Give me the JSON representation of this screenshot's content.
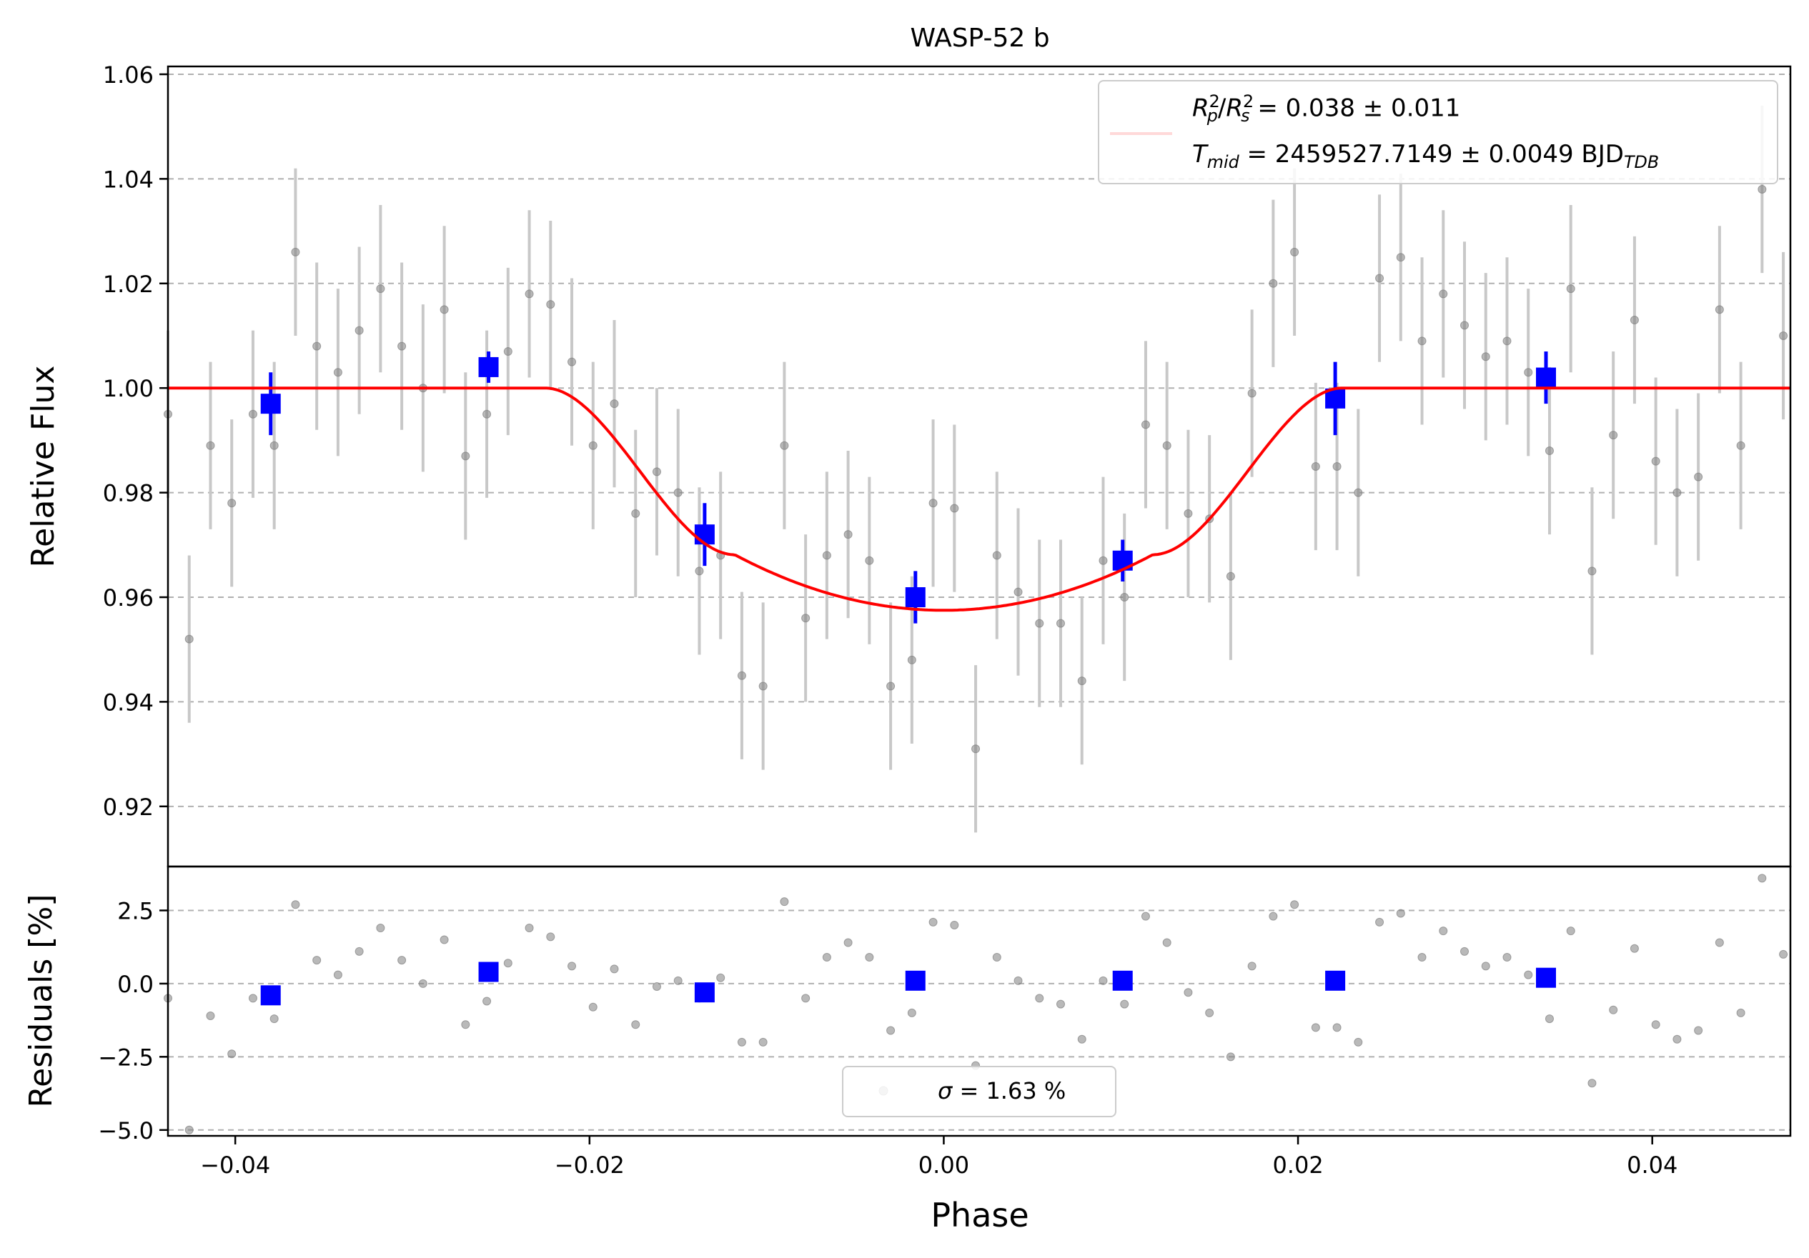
{
  "chart_data": [
    {
      "type": "scatter",
      "panel": "main",
      "title": "WASP-52 b",
      "xlabel": "",
      "ylabel": "Relative Flux",
      "xlim": [
        -0.0438,
        0.0478
      ],
      "ylim": [
        0.9085,
        1.0615
      ],
      "yticks": [
        0.92,
        0.94,
        0.96,
        0.98,
        1.0,
        1.02,
        1.04,
        1.06
      ],
      "ytick_labels": [
        "0.92",
        "0.94",
        "0.96",
        "0.98",
        "1.00",
        "1.02",
        "1.04",
        "1.06"
      ],
      "grid": "y-dashed",
      "legend": {
        "position": "top-right",
        "line_color": "#ff0000",
        "line1": {
          "lhs_a": "R",
          "lhs_a_sup": "2",
          "lhs_a_sub": "p",
          "lhs_b": "R",
          "lhs_b_sup": "2",
          "lhs_b_sub": "s",
          "rhs": " = 0.038 ± 0.011"
        },
        "line2": {
          "lhs": "T",
          "lhs_sub": "mid",
          "rhs": " = 2459527.7149 ± 0.0049 BJD",
          "unit_sub": "TDB"
        }
      },
      "series": [
        {
          "kind": "raw",
          "color": "#808080",
          "x": [
            -0.0438,
            -0.0426,
            -0.0414,
            -0.0402,
            -0.039,
            -0.0378,
            -0.0366,
            -0.0354,
            -0.0342,
            -0.033,
            -0.0318,
            -0.0306,
            -0.0294,
            -0.0282,
            -0.027,
            -0.0258,
            -0.0246,
            -0.0234,
            -0.0222,
            -0.021,
            -0.0198,
            -0.0186,
            -0.0174,
            -0.0162,
            -0.015,
            -0.0138,
            -0.0126,
            -0.0114,
            -0.0102,
            -0.009,
            -0.0078,
            -0.0066,
            -0.0054,
            -0.0042,
            -0.003,
            -0.0018,
            -0.0006,
            0.0006,
            0.0018,
            0.003,
            0.0042,
            0.0054,
            0.0066,
            0.0078,
            0.009,
            0.0102,
            0.0114,
            0.0126,
            0.0138,
            0.015,
            0.0162,
            0.0174,
            0.0186,
            0.0198,
            0.021,
            0.0222,
            0.0234,
            0.0246,
            0.0258,
            0.027,
            0.0282,
            0.0294,
            0.0306,
            0.0318,
            0.033,
            0.0342,
            0.0354,
            0.0366,
            0.0378,
            0.039,
            0.0402,
            0.0414,
            0.0426,
            0.0438,
            0.045,
            0.0462,
            0.0474
          ],
          "y": [
            0.995,
            0.952,
            0.989,
            0.978,
            0.995,
            0.989,
            1.026,
            1.008,
            1.003,
            1.011,
            1.019,
            1.008,
            1.0,
            1.015,
            0.987,
            0.995,
            1.007,
            1.018,
            1.016,
            1.005,
            0.989,
            0.997,
            0.976,
            0.984,
            0.98,
            0.965,
            0.968,
            0.945,
            0.943,
            0.989,
            0.956,
            0.968,
            0.972,
            0.967,
            0.943,
            0.948,
            0.978,
            0.977,
            0.931,
            0.968,
            0.961,
            0.955,
            0.955,
            0.944,
            0.967,
            0.96,
            0.993,
            0.989,
            0.976,
            0.975,
            0.964,
            0.999,
            1.02,
            1.026,
            0.985,
            0.985,
            0.98,
            1.021,
            1.025,
            1.009,
            1.018,
            1.012,
            1.006,
            1.009,
            1.003,
            0.988,
            1.019,
            0.965,
            0.991,
            1.013,
            0.986,
            0.98,
            0.983,
            1.015,
            0.989,
            1.038,
            1.01
          ],
          "yerr": 0.016
        },
        {
          "kind": "binned",
          "color": "#0000ff",
          "x": [
            -0.038,
            -0.0257,
            -0.0135,
            -0.0016,
            0.0101,
            0.0221,
            0.034
          ],
          "y": [
            0.997,
            1.004,
            0.972,
            0.96,
            0.967,
            0.998,
            1.002
          ],
          "yerr": [
            0.006,
            0.003,
            0.006,
            0.005,
            0.004,
            0.007,
            0.005
          ]
        },
        {
          "kind": "model",
          "color": "#ff0000",
          "depth": 0.0425,
          "t1": 0.0225,
          "t2": 0.0118
        }
      ]
    },
    {
      "type": "scatter",
      "panel": "residuals",
      "xlabel": "Phase",
      "ylabel": "Residuals [%]",
      "xlim": [
        -0.0438,
        0.0478
      ],
      "ylim": [
        -5.2,
        4.0
      ],
      "xticks": [
        -0.04,
        -0.02,
        0.0,
        0.02,
        0.04
      ],
      "xtick_labels": [
        "−0.04",
        "−0.02",
        "0.00",
        "0.02",
        "0.04"
      ],
      "yticks": [
        -5.0,
        -2.5,
        0.0,
        2.5
      ],
      "ytick_labels": [
        "−5.0",
        "−2.5",
        "0.0",
        "2.5"
      ],
      "grid": "y-dashed",
      "legend": {
        "position": "bottom-center",
        "label": " = 1.63 %",
        "symbol": "σ"
      },
      "series": [
        {
          "kind": "raw",
          "color": "#808080",
          "values": [
            -0.5,
            -5.0,
            -1.1,
            -2.4,
            -0.5,
            -1.2,
            2.7,
            0.8,
            0.3,
            1.1,
            1.9,
            0.8,
            0.0,
            1.5,
            -1.4,
            -0.6,
            0.7,
            1.9,
            1.6,
            0.6,
            -0.8,
            0.5,
            -1.4,
            -0.1,
            0.1,
            -0.5,
            0.2,
            -2.0,
            -2.0,
            2.8,
            -0.5,
            0.9,
            1.4,
            0.9,
            -1.6,
            -1.0,
            2.1,
            2.0,
            -2.8,
            0.9,
            0.1,
            -0.5,
            -0.7,
            -1.9,
            0.1,
            -0.7,
            2.3,
            1.4,
            -0.3,
            -1.0,
            -2.5,
            0.6,
            2.3,
            2.7,
            -1.5,
            -1.5,
            -2.0,
            2.1,
            2.4,
            0.9,
            1.8,
            1.1,
            0.6,
            0.9,
            0.3,
            -1.2,
            1.8,
            -3.4,
            -0.9,
            1.2,
            -1.4,
            -1.9,
            -1.6,
            1.4,
            -1.0,
            3.6,
            1.0
          ]
        },
        {
          "kind": "binned",
          "color": "#0000ff",
          "values": [
            -0.4,
            0.4,
            -0.3,
            0.1,
            0.1,
            0.1,
            0.2
          ]
        }
      ]
    }
  ]
}
